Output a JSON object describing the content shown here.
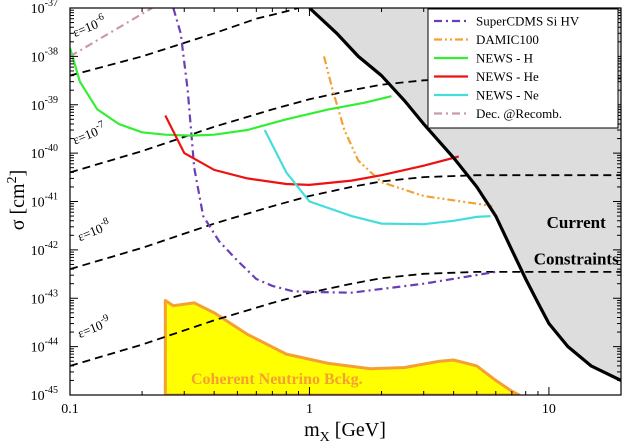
{
  "chart_data": {
    "type": "line",
    "title": "",
    "xlabel": {
      "main": "m",
      "sub": "X",
      "rest": " [GeV]"
    },
    "ylabel": {
      "main": "σ [cm",
      "sup": "2",
      "rest": "]"
    },
    "xscale": "log",
    "yscale": "log",
    "xlim": [
      0.1,
      20
    ],
    "ylim": [
      1e-45,
      1e-37
    ],
    "x_ticks": [
      {
        "value": 0.1,
        "label": "0.1"
      },
      {
        "value": 1,
        "label": "1"
      },
      {
        "value": 10,
        "label": "10"
      }
    ],
    "y_ticks": [
      {
        "value": 1e-37,
        "base": "10",
        "exp": "-37"
      },
      {
        "value": 1e-38,
        "base": "10",
        "exp": "-38"
      },
      {
        "value": 1e-39,
        "base": "10",
        "exp": "-39"
      },
      {
        "value": 1e-40,
        "base": "10",
        "exp": "-40"
      },
      {
        "value": 1e-41,
        "base": "10",
        "exp": "-41"
      },
      {
        "value": 1e-42,
        "base": "10",
        "exp": "-42"
      },
      {
        "value": 1e-43,
        "base": "10",
        "exp": "-43"
      },
      {
        "value": 1e-44,
        "base": "10",
        "exp": "-44"
      },
      {
        "value": 1e-45,
        "base": "10",
        "exp": "-45"
      }
    ],
    "legend": {
      "position": "top-right"
    },
    "series": [
      {
        "name": "SuperCDMS Si HV",
        "color": "#6a3fb5",
        "dash": "dashdot",
        "in_legend": true,
        "points": [
          [
            0.27,
            1e-37
          ],
          [
            0.29,
            3e-38
          ],
          [
            0.31,
            2e-39
          ],
          [
            0.33,
            5e-41
          ],
          [
            0.36,
            5e-42
          ],
          [
            0.42,
            1.5e-42
          ],
          [
            0.5,
            6e-43
          ],
          [
            0.6,
            2.5e-43
          ],
          [
            0.7,
            1.8e-43
          ],
          [
            0.85,
            1.4e-43
          ],
          [
            1,
            1.35e-43
          ],
          [
            1.5,
            1.3e-43
          ],
          [
            3,
            2e-43
          ],
          [
            6,
            3.5e-43
          ]
        ]
      },
      {
        "name": "DAMIC100",
        "color": "#f5a033",
        "dash": "dashdotdot",
        "in_legend": true,
        "points": [
          [
            1.15,
            1e-38
          ],
          [
            1.25,
            2e-39
          ],
          [
            1.4,
            3e-40
          ],
          [
            1.6,
            7e-41
          ],
          [
            2,
            2.5e-41
          ],
          [
            3,
            1.3e-41
          ],
          [
            5,
            9e-42
          ],
          [
            5.8,
            8e-42
          ]
        ]
      },
      {
        "name": "NEWS - H",
        "color": "#33ee33",
        "dash": "solid",
        "in_legend": true,
        "points": [
          [
            0.1,
            1.5e-38
          ],
          [
            0.11,
            3e-39
          ],
          [
            0.13,
            8e-40
          ],
          [
            0.16,
            4e-40
          ],
          [
            0.2,
            2.7e-40
          ],
          [
            0.25,
            2.4e-40
          ],
          [
            0.32,
            2.3e-40
          ],
          [
            0.4,
            2.4e-40
          ],
          [
            0.55,
            3e-40
          ],
          [
            0.8,
            5e-40
          ],
          [
            1.2,
            8e-40
          ],
          [
            1.7,
            1.1e-39
          ],
          [
            2.2,
            1.5e-39
          ]
        ]
      },
      {
        "name": "NEWS - He",
        "color": "#ee1111",
        "dash": "solid",
        "in_legend": true,
        "points": [
          [
            0.25,
            6e-40
          ],
          [
            0.3,
            1e-40
          ],
          [
            0.4,
            4.5e-41
          ],
          [
            0.55,
            3e-41
          ],
          [
            0.8,
            2.3e-41
          ],
          [
            1,
            2.2e-41
          ],
          [
            1.5,
            2.7e-41
          ],
          [
            2,
            3.5e-41
          ],
          [
            3,
            5.5e-41
          ],
          [
            4.2,
            8.5e-41
          ]
        ]
      },
      {
        "name": "NEWS - Ne",
        "color": "#44dddd",
        "dash": "solid",
        "in_legend": true,
        "points": [
          [
            0.65,
            3e-40
          ],
          [
            0.8,
            4e-41
          ],
          [
            1,
            1e-41
          ],
          [
            1.5,
            5e-42
          ],
          [
            2,
            3.5e-42
          ],
          [
            3,
            3.4e-42
          ],
          [
            4,
            4e-42
          ],
          [
            5,
            4.8e-42
          ],
          [
            5.7,
            5e-42
          ]
        ]
      },
      {
        "name": "Dec. @Recomb.",
        "color": "#cc99aa",
        "dash": "dashdot",
        "in_legend": true,
        "points": [
          [
            0.1,
            1e-38
          ],
          [
            0.22,
            1e-37
          ]
        ]
      }
    ],
    "epsilon_contours": [
      {
        "label": "ε=10",
        "exp": "-6",
        "label_x": 0.105,
        "label_y": 2.5e-38,
        "points": [
          [
            0.1,
            4e-39
          ],
          [
            0.2,
            1e-38
          ],
          [
            0.4,
            3e-38
          ],
          [
            0.6,
            6e-38
          ],
          [
            0.8,
            8.5e-38
          ],
          [
            0.9,
            1e-37
          ]
        ]
      },
      {
        "label": "ε=10",
        "exp": "-7",
        "label_x": 0.105,
        "label_y": 1.5e-40,
        "points": [
          [
            0.1,
            4e-41
          ],
          [
            0.2,
            1.1e-40
          ],
          [
            0.4,
            3.5e-40
          ],
          [
            0.7,
            8e-40
          ],
          [
            1,
            1.3e-39
          ],
          [
            1.5,
            2e-39
          ],
          [
            2,
            2.6e-39
          ],
          [
            3,
            3.2e-39
          ],
          [
            5,
            3.5e-39
          ],
          [
            10,
            3.5e-39
          ],
          [
            20,
            3.5e-39
          ]
        ]
      },
      {
        "label": "ε=10",
        "exp": "-8",
        "label_x": 0.11,
        "label_y": 1.5e-42,
        "points": [
          [
            0.1,
            4e-43
          ],
          [
            0.2,
            1.1e-42
          ],
          [
            0.4,
            3.5e-42
          ],
          [
            0.7,
            8e-42
          ],
          [
            1,
            1.3e-41
          ],
          [
            1.5,
            2e-41
          ],
          [
            2,
            2.6e-41
          ],
          [
            3,
            3.2e-41
          ],
          [
            5,
            3.5e-41
          ],
          [
            10,
            3.5e-41
          ],
          [
            20,
            3.5e-41
          ]
        ]
      },
      {
        "label": "ε=10",
        "exp": "-9",
        "label_x": 0.11,
        "label_y": 1.5e-44,
        "points": [
          [
            0.1,
            4e-45
          ],
          [
            0.2,
            1.1e-44
          ],
          [
            0.4,
            3.5e-44
          ],
          [
            0.7,
            8e-44
          ],
          [
            1,
            1.3e-43
          ],
          [
            1.5,
            2e-43
          ],
          [
            2,
            2.6e-43
          ],
          [
            3,
            3.2e-43
          ],
          [
            5,
            3.5e-43
          ],
          [
            10,
            3.5e-43
          ],
          [
            20,
            3.5e-43
          ]
        ]
      }
    ],
    "current_constraints": {
      "label_line1": "Current",
      "label_line2": "Constraints",
      "label_x": 13,
      "label_y1": 2.8e-42,
      "label_y2": 5e-43,
      "fill": "#dddddd",
      "boundary": [
        [
          1,
          1e-37
        ],
        [
          1.3,
          3e-38
        ],
        [
          1.6,
          1e-38
        ],
        [
          2,
          4e-39
        ],
        [
          2.5,
          1.2e-39
        ],
        [
          3,
          4e-40
        ],
        [
          4,
          8e-41
        ],
        [
          5,
          2e-41
        ],
        [
          6,
          5e-42
        ],
        [
          7,
          1e-42
        ],
        [
          8,
          2.5e-43
        ],
        [
          9,
          8e-44
        ],
        [
          10,
          3e-44
        ],
        [
          12,
          1e-44
        ],
        [
          15,
          4e-45
        ],
        [
          20,
          2e-45
        ]
      ]
    },
    "neutrino_background": {
      "label": "Coherent Neutrino Bckg.",
      "label_x": 0.32,
      "label_y": 1.7e-45,
      "fill": "#ffff00",
      "edge": "#f5a033",
      "points": [
        [
          0.25,
          1e-45
        ],
        [
          0.25,
          9e-44
        ],
        [
          0.27,
          7e-44
        ],
        [
          0.33,
          8e-44
        ],
        [
          0.4,
          5e-44
        ],
        [
          0.55,
          1.8e-44
        ],
        [
          0.8,
          7e-45
        ],
        [
          1.2,
          4.5e-45
        ],
        [
          1.8,
          3.5e-45
        ],
        [
          2.5,
          3.7e-45
        ],
        [
          3.5,
          5e-45
        ],
        [
          4,
          5.3e-45
        ],
        [
          5,
          4e-45
        ],
        [
          6,
          2e-45
        ],
        [
          7,
          1.2e-45
        ],
        [
          7.5,
          1e-45
        ]
      ]
    }
  }
}
